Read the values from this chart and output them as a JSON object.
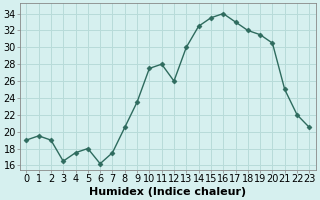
{
  "x": [
    0,
    1,
    2,
    3,
    4,
    5,
    6,
    7,
    8,
    9,
    10,
    11,
    12,
    13,
    14,
    15,
    16,
    17,
    18,
    19,
    20,
    21,
    22,
    23
  ],
  "y": [
    19.0,
    19.5,
    19.0,
    16.5,
    17.5,
    18.0,
    16.2,
    17.5,
    20.5,
    23.5,
    27.5,
    28.0,
    26.0,
    30.0,
    32.5,
    33.5,
    34.0,
    33.0,
    32.0,
    31.5,
    30.5,
    25.0,
    22.0,
    20.5
  ],
  "line_color": "#2e6b5e",
  "marker": "D",
  "marker_size": 2.5,
  "bg_color": "#d6f0ef",
  "grid_color": "#b8dbd9",
  "xlabel": "Humidex (Indice chaleur)",
  "ylabel_ticks": [
    16,
    18,
    20,
    22,
    24,
    26,
    28,
    30,
    32,
    34
  ],
  "ylim": [
    15.5,
    35.2
  ],
  "xlim": [
    -0.5,
    23.5
  ],
  "xlabel_fontsize": 8,
  "tick_fontsize": 7,
  "linewidth": 1.0
}
